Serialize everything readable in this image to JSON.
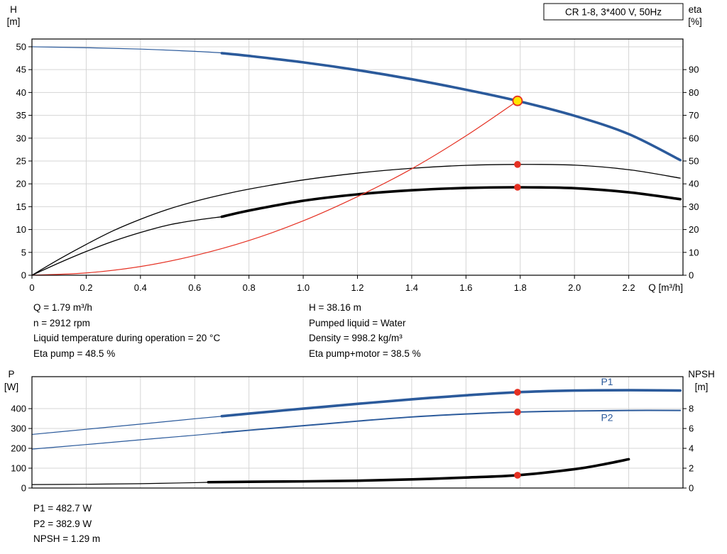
{
  "colors": {
    "blue": "#2B5A9B",
    "black": "#000000",
    "red": "#E53022",
    "yellow": "#FFE600",
    "grid": "#D5D5D5"
  },
  "info_top": {
    "left": [
      "Q = 1.79 m³/h",
      "n = 2912 rpm",
      "Liquid temperature during operation = 20 °C",
      "Eta pump = 48.5 %"
    ],
    "right": [
      "H = 38.16 m",
      "Pumped liquid = Water",
      "Density = 998.2 kg/m³",
      "Eta pump+motor = 38.5 %"
    ]
  },
  "info_bottom": [
    "P1 = 482.7 W",
    "P2 = 382.9 W",
    "NPSH = 1.29 m"
  ],
  "chart_data": [
    {
      "id": "hq",
      "type": "line",
      "title": "CR 1-8, 3*400 V, 50Hz",
      "xlabel": "Q [m³/h]",
      "ylabel_left": [
        "H",
        "[m]"
      ],
      "ylabel_right": [
        "eta",
        "[%]"
      ],
      "xlim": [
        0,
        2.4
      ],
      "ylim_left": [
        0,
        51.7
      ],
      "ylim_right": [
        0,
        103.4
      ],
      "grid": true,
      "legend": "none",
      "xticks": [
        0,
        0.2,
        0.4,
        0.6,
        0.8,
        1.0,
        1.2,
        1.4,
        1.6,
        1.8,
        2.0,
        2.2
      ],
      "xtick_labels": [
        "0",
        "0.2",
        "0.4",
        "0.6",
        "0.8",
        "1.0",
        "1.2",
        "1.4",
        "1.6",
        "1.8",
        "2.0",
        "2.2"
      ],
      "yticks_left": [
        0,
        5,
        10,
        15,
        20,
        25,
        30,
        35,
        40,
        45,
        50
      ],
      "yticks_right": [
        0,
        10,
        20,
        30,
        40,
        50,
        60,
        70,
        80,
        90
      ],
      "series": [
        {
          "name": "head-curve-extension",
          "axis": "left",
          "color": "blue",
          "width": 1.2,
          "x": [
            0,
            0.2,
            0.4,
            0.6,
            0.72
          ],
          "y": [
            50,
            49.8,
            49.5,
            49.0,
            48.6
          ]
        },
        {
          "name": "head-curve",
          "axis": "left",
          "color": "blue",
          "width": 3.6,
          "x": [
            0.7,
            0.8,
            1.0,
            1.2,
            1.4,
            1.6,
            1.79,
            2.0,
            2.2,
            2.39
          ],
          "y": [
            48.6,
            48.0,
            46.6,
            44.9,
            42.9,
            40.6,
            38.16,
            34.9,
            30.9,
            25.2
          ]
        },
        {
          "name": "eta-pump-curve",
          "axis": "right",
          "color": "black",
          "width": 1.3,
          "x": [
            0,
            0.1,
            0.2,
            0.3,
            0.4,
            0.5,
            0.6,
            0.7,
            0.8,
            1.0,
            1.2,
            1.4,
            1.6,
            1.79,
            2.0,
            2.2,
            2.39
          ],
          "y": [
            0,
            7,
            13.5,
            19.5,
            24.5,
            28.8,
            32.3,
            35.2,
            37.7,
            41.7,
            44.7,
            46.8,
            48.1,
            48.5,
            48.2,
            46.2,
            42.5
          ]
        },
        {
          "name": "eta-pump-motor-extension",
          "axis": "right",
          "color": "black",
          "width": 1.3,
          "x": [
            0,
            0.1,
            0.2,
            0.3,
            0.4,
            0.5,
            0.6,
            0.7
          ],
          "y": [
            0,
            5.4,
            10.4,
            14.9,
            18.7,
            21.9,
            24.0,
            25.6
          ]
        },
        {
          "name": "eta-pump-motor-curve",
          "axis": "right",
          "color": "black",
          "width": 3.6,
          "x": [
            0.7,
            0.8,
            1.0,
            1.2,
            1.4,
            1.6,
            1.79,
            2.0,
            2.2,
            2.39
          ],
          "y": [
            25.6,
            28.3,
            32.6,
            35.4,
            37.2,
            38.2,
            38.5,
            38.1,
            36.3,
            33.3
          ]
        },
        {
          "name": "system-curve",
          "axis": "left",
          "color": "red",
          "width": 1.2,
          "x": [
            0,
            0.2,
            0.4,
            0.6,
            0.8,
            1.0,
            1.2,
            1.4,
            1.6,
            1.79
          ],
          "y": [
            0,
            0.5,
            1.9,
            4.3,
            7.6,
            11.9,
            17.2,
            23.3,
            30.5,
            38.16
          ]
        }
      ],
      "markers": [
        {
          "name": "eta-pump-operating-point",
          "style": "dot",
          "axis": "right",
          "x": 1.79,
          "y": 48.5
        },
        {
          "name": "eta-pump-motor-operating-point",
          "style": "dot",
          "axis": "right",
          "x": 1.79,
          "y": 38.5
        },
        {
          "name": "duty-point",
          "style": "duty",
          "axis": "left",
          "x": 1.79,
          "y": 38.16
        }
      ]
    },
    {
      "id": "power",
      "type": "line",
      "title": "",
      "xlabel": "",
      "ylabel_left": [
        "P",
        "[W]"
      ],
      "ylabel_right": [
        "NPSH",
        "[m]"
      ],
      "xlim": [
        0,
        2.4
      ],
      "ylim_left": [
        0,
        561
      ],
      "ylim_right": [
        0,
        11.22
      ],
      "grid": true,
      "legend": "inline",
      "xticks": [
        0,
        0.2,
        0.4,
        0.6,
        0.8,
        1.0,
        1.2,
        1.4,
        1.6,
        1.8,
        2.0,
        2.2
      ],
      "xtick_labels": [],
      "yticks_left": [
        0,
        100,
        200,
        300,
        400
      ],
      "yticks_right": [
        0,
        2,
        4,
        6,
        8
      ],
      "series": [
        {
          "name": "p1-curve-extension",
          "axis": "left",
          "color": "blue",
          "width": 1.2,
          "x": [
            0,
            0.2,
            0.4,
            0.6,
            0.72
          ],
          "y": [
            270,
            296,
            322,
            349,
            364
          ]
        },
        {
          "name": "p1-curve",
          "axis": "left",
          "color": "blue",
          "width": 3.6,
          "x": [
            0.7,
            0.8,
            1.0,
            1.2,
            1.4,
            1.6,
            1.79,
            2.0,
            2.2,
            2.39
          ],
          "y": [
            362,
            375,
            400,
            424,
            447,
            467,
            482.7,
            491,
            493,
            491
          ]
        },
        {
          "name": "p2-curve-extension",
          "axis": "left",
          "color": "blue",
          "width": 1.2,
          "x": [
            0,
            0.2,
            0.4,
            0.6,
            0.72
          ],
          "y": [
            196,
            219,
            243,
            266,
            281
          ]
        },
        {
          "name": "p2-curve",
          "axis": "left",
          "color": "blue",
          "width": 2,
          "x": [
            0.7,
            0.8,
            1.0,
            1.2,
            1.4,
            1.6,
            1.79,
            2.0,
            2.2,
            2.39
          ],
          "y": [
            279,
            291,
            314,
            337,
            358,
            373,
            382.9,
            388,
            391,
            391
          ]
        },
        {
          "name": "npsh-curve-extension",
          "axis": "right",
          "color": "black",
          "width": 1.2,
          "x": [
            0,
            0.2,
            0.4,
            0.6,
            0.68
          ],
          "y": [
            0.35,
            0.38,
            0.44,
            0.54,
            0.6
          ]
        },
        {
          "name": "npsh-curve",
          "axis": "right",
          "color": "black",
          "width": 3.6,
          "x": [
            0.65,
            0.8,
            1.0,
            1.2,
            1.4,
            1.6,
            1.79,
            2.0,
            2.1,
            2.2
          ],
          "y": [
            0.59,
            0.63,
            0.67,
            0.74,
            0.87,
            1.06,
            1.29,
            1.9,
            2.35,
            2.9
          ]
        }
      ],
      "annotations": [
        {
          "text": "P1",
          "x": 2.12,
          "y": 536,
          "axis": "left",
          "color": "blue"
        },
        {
          "text": "P2",
          "x": 2.12,
          "y": 356,
          "axis": "left",
          "color": "blue"
        }
      ],
      "markers": [
        {
          "name": "p1-operating-point",
          "style": "dot",
          "axis": "left",
          "x": 1.79,
          "y": 482.7
        },
        {
          "name": "p2-operating-point",
          "style": "dot",
          "axis": "left",
          "x": 1.79,
          "y": 382.9
        },
        {
          "name": "npsh-operating-point",
          "style": "dot",
          "axis": "right",
          "x": 1.79,
          "y": 1.29
        }
      ]
    }
  ]
}
